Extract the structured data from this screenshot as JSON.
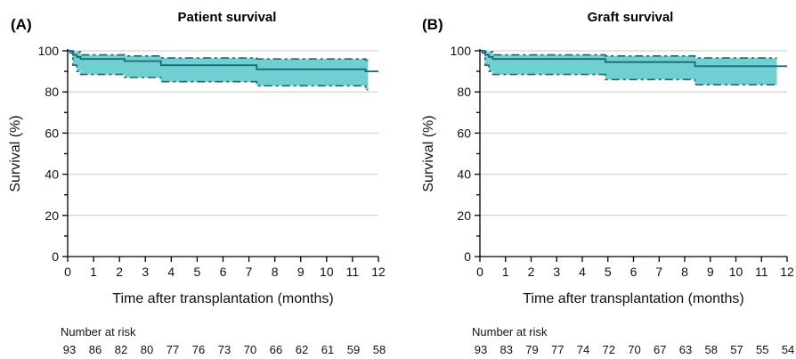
{
  "chart_data": [
    {
      "type": "line",
      "panel_label": "(A)",
      "title": "Patient survival",
      "xlabel": "Time after transplantation (months)",
      "ylabel": "Survival (%)",
      "xlim": [
        0,
        12
      ],
      "ylim": [
        0,
        100
      ],
      "x_ticks": [
        "0",
        "1",
        "2",
        "3",
        "4",
        "5",
        "6",
        "7",
        "8",
        "9",
        "10",
        "11",
        "12"
      ],
      "y_ticks": [
        "0",
        "20",
        "40",
        "60",
        "80",
        "100"
      ],
      "grid": "horizontal",
      "series": [
        {
          "name": "",
          "role": "estimate",
          "x": [
            0,
            0.1,
            0.2,
            0.35,
            0.5,
            2.2,
            3.6,
            7.3,
            11.5,
            12
          ],
          "y": [
            100,
            99,
            98,
            97,
            96,
            95,
            93,
            91,
            90,
            90
          ]
        },
        {
          "name": "",
          "role": "upper_ci",
          "x": [
            0,
            0.2,
            0.5,
            2.2,
            3.6,
            7.3,
            11.5,
            11.6
          ],
          "y": [
            100,
            99.5,
            98,
            97.5,
            96.5,
            96,
            95.5,
            95.5
          ]
        },
        {
          "name": "",
          "role": "lower_ci",
          "x": [
            0,
            0.2,
            0.35,
            0.5,
            2.2,
            3.6,
            7.3,
            11.5,
            11.6
          ],
          "y": [
            100,
            93,
            90,
            88.5,
            87,
            85,
            83,
            81,
            81
          ]
        }
      ],
      "risk_table": {
        "label": "Number at risk",
        "values": [
          "93",
          "86",
          "82",
          "80",
          "77",
          "76",
          "73",
          "70",
          "66",
          "62",
          "61",
          "59",
          "58"
        ]
      }
    },
    {
      "type": "line",
      "panel_label": "(B)",
      "title": "Graft survival",
      "xlabel": "Time after transplantation (months)",
      "ylabel": "Survival (%)",
      "xlim": [
        0,
        12
      ],
      "ylim": [
        0,
        100
      ],
      "x_ticks": [
        "0",
        "1",
        "2",
        "3",
        "4",
        "5",
        "6",
        "7",
        "8",
        "9",
        "10",
        "11",
        "12"
      ],
      "y_ticks": [
        "0",
        "20",
        "40",
        "60",
        "80",
        "100"
      ],
      "grid": "horizontal",
      "series": [
        {
          "name": "",
          "role": "estimate",
          "x": [
            0,
            0.1,
            0.2,
            0.35,
            0.5,
            4.9,
            8.4,
            12
          ],
          "y": [
            100,
            99,
            98,
            97,
            96,
            94.5,
            92.5,
            92.5
          ]
        },
        {
          "name": "",
          "role": "upper_ci",
          "x": [
            0,
            0.2,
            0.5,
            4.9,
            8.4,
            11.6
          ],
          "y": [
            100,
            99.5,
            98,
            97.5,
            96.5,
            96.5
          ]
        },
        {
          "name": "",
          "role": "lower_ci",
          "x": [
            0,
            0.2,
            0.35,
            0.5,
            4.9,
            8.4,
            11.6
          ],
          "y": [
            100,
            93,
            90,
            88.5,
            86,
            83.5,
            83.5
          ]
        }
      ],
      "risk_table": {
        "label": "Number at risk",
        "values": [
          "93",
          "83",
          "79",
          "77",
          "74",
          "72",
          "70",
          "67",
          "63",
          "58",
          "57",
          "55",
          "54"
        ]
      }
    }
  ]
}
